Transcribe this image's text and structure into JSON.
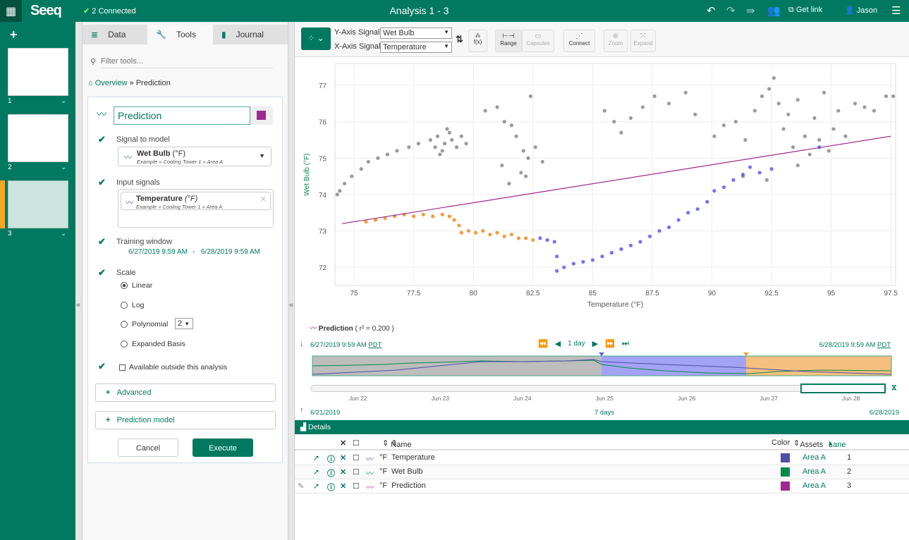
{
  "header": {
    "logo": "Seeq",
    "connected": "2 Connected",
    "title": "Analysis 1 - 3",
    "get_link": "Get link",
    "user": "Jason"
  },
  "rail": {
    "add": "+",
    "worksheets": [
      "1",
      "2",
      "3"
    ]
  },
  "panel": {
    "tabs": [
      {
        "label": "Data"
      },
      {
        "label": "Tools"
      },
      {
        "label": "Journal"
      }
    ],
    "filter_placeholder": "Filter tools...",
    "breadcrumb": {
      "home": "Overview",
      "sep": "»",
      "current": "Prediction"
    },
    "name_value": "Prediction",
    "color": "#a0288f",
    "signal_to_model_label": "Signal to model",
    "signal_to_model": {
      "name": "Wet Bulb",
      "unit": "(°F)",
      "path": "Example » Cooling Tower 1 » Area A"
    },
    "input_signals_label": "Input signals",
    "input_signal": {
      "name": "Temperature",
      "unit": "(°F)",
      "path": "Example » Cooling Tower 1 » Area A"
    },
    "training_window_label": "Training window",
    "training_start": "6/27/2019 9:59 AM",
    "training_dash": "-",
    "training_end": "6/28/2019 9:59 AM",
    "scale_label": "Scale",
    "scale_options": [
      "Linear",
      "Log",
      "Polynomial",
      "Expanded Basis"
    ],
    "scale_selected": "Linear",
    "polynomial_degree": "2",
    "available_outside": "Available outside this analysis",
    "advanced": "Advanced",
    "prediction_model": "Prediction model",
    "cancel": "Cancel",
    "execute": "Execute"
  },
  "toolbar": {
    "y_axis_label": "Y-Axis Signal:",
    "y_axis_value": "Wet Bulb",
    "x_axis_label": "X-Axis Signal:",
    "x_axis_value": "Temperature",
    "fx": "f(x)",
    "range": "Range",
    "capsules": "Capsules",
    "connect": "Connect",
    "zoom": "Zoom",
    "expand": "Expand"
  },
  "chart_data": {
    "type": "scatter",
    "xlabel": "Temperature (°F)",
    "ylabel": "Wet Bulb (°F)",
    "xlim": [
      74.2,
      97.7
    ],
    "ylim": [
      71.5,
      77.6
    ],
    "xticks": [
      75,
      77.5,
      80,
      82.5,
      85,
      87.5,
      90,
      92.5,
      95,
      97.5
    ],
    "xtick_labels": [
      "75",
      "77.5",
      "80",
      "82.5",
      "85",
      "87.5",
      "90",
      "92.5",
      "95",
      "97.5"
    ],
    "yticks": [
      72,
      73,
      74,
      75,
      76,
      77
    ],
    "grid": true,
    "series": [
      {
        "color": "#888888",
        "points": [
          [
            74.3,
            74.0
          ],
          [
            74.4,
            74.1
          ],
          [
            74.6,
            74.3
          ],
          [
            74.9,
            74.5
          ],
          [
            75.3,
            74.7
          ],
          [
            75.6,
            74.9
          ],
          [
            76.0,
            75.0
          ],
          [
            76.4,
            75.1
          ],
          [
            76.8,
            75.2
          ],
          [
            77.3,
            75.3
          ],
          [
            77.7,
            75.4
          ],
          [
            78.2,
            75.5
          ],
          [
            78.4,
            75.3
          ],
          [
            78.5,
            75.6
          ],
          [
            78.7,
            75.2
          ],
          [
            78.8,
            75.4
          ],
          [
            79.0,
            75.7
          ],
          [
            79.1,
            75.5
          ],
          [
            79.3,
            75.3
          ],
          [
            79.5,
            75.6
          ],
          [
            79.7,
            75.4
          ],
          [
            78.9,
            75.8
          ],
          [
            78.6,
            75.1
          ],
          [
            80.5,
            76.3
          ],
          [
            81.0,
            76.4
          ],
          [
            81.3,
            76.0
          ],
          [
            81.6,
            75.9
          ],
          [
            81.8,
            75.6
          ],
          [
            82.1,
            75.2
          ],
          [
            82.4,
            76.7
          ],
          [
            82.3,
            75.0
          ],
          [
            82.0,
            74.6
          ],
          [
            81.5,
            74.3
          ],
          [
            81.2,
            74.8
          ],
          [
            82.6,
            75.3
          ],
          [
            82.9,
            74.9
          ],
          [
            82.2,
            74.5
          ],
          [
            85.5,
            76.3
          ],
          [
            85.9,
            76.0
          ],
          [
            86.2,
            75.7
          ],
          [
            86.6,
            76.1
          ],
          [
            87.1,
            76.4
          ],
          [
            87.6,
            76.7
          ],
          [
            88.2,
            76.5
          ],
          [
            88.9,
            76.8
          ],
          [
            89.3,
            76.2
          ],
          [
            90.1,
            75.6
          ],
          [
            90.5,
            75.9
          ],
          [
            91.0,
            76.0
          ],
          [
            91.4,
            75.5
          ],
          [
            91.8,
            76.3
          ],
          [
            92.1,
            76.7
          ],
          [
            92.4,
            76.9
          ],
          [
            92.6,
            77.2
          ],
          [
            92.8,
            76.5
          ],
          [
            93.0,
            75.8
          ],
          [
            93.2,
            76.2
          ],
          [
            93.4,
            75.3
          ],
          [
            93.6,
            76.6
          ],
          [
            93.9,
            75.6
          ],
          [
            94.1,
            75.1
          ],
          [
            94.3,
            76.1
          ],
          [
            94.5,
            75.5
          ],
          [
            94.7,
            76.8
          ],
          [
            94.9,
            75.2
          ],
          [
            95.1,
            75.8
          ],
          [
            95.3,
            76.3
          ],
          [
            95.6,
            75.6
          ],
          [
            96.0,
            76.5
          ],
          [
            96.4,
            76.4
          ],
          [
            96.8,
            76.3
          ],
          [
            97.3,
            76.7
          ],
          [
            97.6,
            76.7
          ],
          [
            92.3,
            74.4
          ],
          [
            91.3,
            74.5
          ],
          [
            93.6,
            74.8
          ]
        ]
      },
      {
        "color": "#f28b1e",
        "points": [
          [
            75.5,
            73.25
          ],
          [
            75.9,
            73.3
          ],
          [
            76.3,
            73.35
          ],
          [
            76.7,
            73.4
          ],
          [
            77.1,
            73.45
          ],
          [
            77.5,
            73.4
          ],
          [
            77.9,
            73.45
          ],
          [
            78.3,
            73.4
          ],
          [
            78.7,
            73.45
          ],
          [
            79.0,
            73.4
          ],
          [
            79.2,
            73.3
          ],
          [
            79.4,
            73.15
          ],
          [
            79.5,
            72.95
          ],
          [
            79.8,
            73.0
          ],
          [
            80.1,
            72.95
          ],
          [
            80.4,
            73.0
          ],
          [
            80.7,
            72.9
          ],
          [
            81.0,
            72.95
          ],
          [
            81.3,
            72.85
          ],
          [
            81.6,
            72.9
          ],
          [
            81.9,
            72.8
          ],
          [
            82.2,
            72.8
          ],
          [
            82.5,
            72.75
          ]
        ]
      },
      {
        "color": "#5a5af5",
        "points": [
          [
            82.8,
            72.8
          ],
          [
            83.1,
            72.75
          ],
          [
            83.4,
            72.7
          ],
          [
            83.5,
            72.3
          ],
          [
            83.5,
            71.9
          ],
          [
            83.8,
            72.0
          ],
          [
            84.2,
            72.1
          ],
          [
            84.6,
            72.15
          ],
          [
            85.0,
            72.2
          ],
          [
            85.4,
            72.3
          ],
          [
            85.8,
            72.4
          ],
          [
            86.2,
            72.5
          ],
          [
            86.6,
            72.6
          ],
          [
            87.0,
            72.7
          ],
          [
            87.4,
            72.85
          ],
          [
            87.8,
            73.0
          ],
          [
            88.2,
            73.1
          ],
          [
            88.6,
            73.3
          ],
          [
            89.0,
            73.5
          ],
          [
            89.4,
            73.6
          ],
          [
            89.8,
            73.8
          ],
          [
            90.1,
            74.1
          ],
          [
            90.5,
            74.2
          ],
          [
            90.9,
            74.4
          ],
          [
            91.3,
            74.55
          ],
          [
            91.6,
            74.75
          ],
          [
            92.0,
            74.6
          ],
          [
            92.5,
            74.7
          ],
          [
            94.5,
            75.3
          ]
        ]
      },
      {
        "color": "#a0288f",
        "type": "line",
        "points": [
          [
            74.5,
            73.2
          ],
          [
            97.5,
            75.6
          ]
        ]
      }
    ]
  },
  "legend": {
    "name": "Prediction",
    "r2": "( r² = 0.200 )"
  },
  "timeline": {
    "start": "6/27/2019 9:59 AM",
    "end": "6/28/2019 9:59 AM",
    "tz": "PDT",
    "step": "1 day",
    "overview_start": "6/21/2019",
    "overview_span": "7 days",
    "overview_end": "6/28/2019",
    "ticks": [
      "Jun 22",
      "Jun 23",
      "Jun 24",
      "Jun 25",
      "Jun 26",
      "Jun 27",
      "Jun 28"
    ]
  },
  "details": {
    "title": "Details",
    "columns": {
      "name": "Name",
      "color": "Color",
      "assets": "Assets",
      "lane": "Lane"
    },
    "rows": [
      {
        "unit": "°F",
        "name": "Temperature",
        "color": "#4c4fa8",
        "asset": "Area A",
        "lane": "1"
      },
      {
        "unit": "°F",
        "name": "Wet Bulb",
        "color": "#078a4b",
        "asset": "Area A",
        "lane": "2"
      },
      {
        "unit": "°F",
        "name": "Prediction",
        "color": "#a0288f",
        "asset": "Area A",
        "lane": "3"
      }
    ]
  }
}
